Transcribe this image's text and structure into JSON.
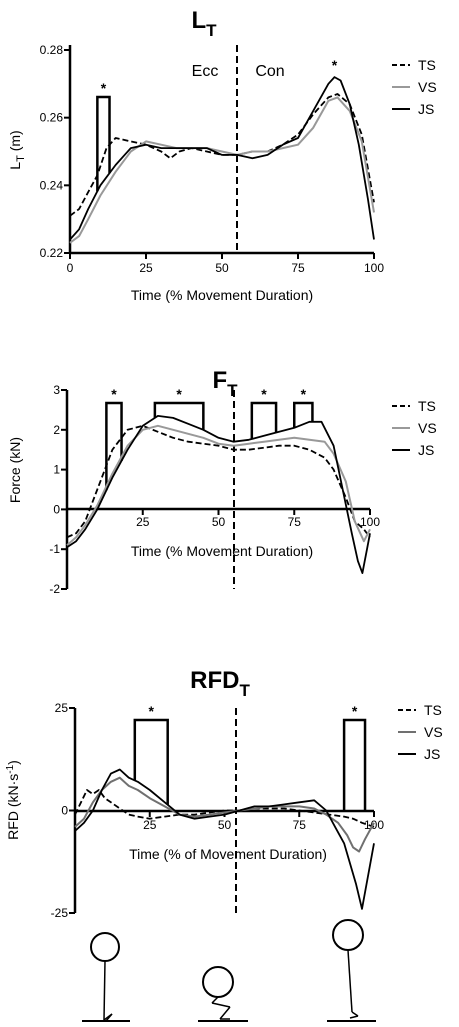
{
  "colors": {
    "TS": "#000000",
    "VS": "#999999",
    "VS_rfd": "#707070",
    "JS": "#000000"
  },
  "chart_data": [
    {
      "type": "line",
      "title": "L",
      "title_sub": "T",
      "xlabel": "Time (% Movement Duration)",
      "ylabel": "L",
      "ylabel_sub": "T",
      "ylabel_unit": " (m)",
      "xlim": [
        0,
        100
      ],
      "ylim": [
        0.22,
        0.28
      ],
      "xticks": [
        "0",
        "25",
        "50",
        "75",
        "100"
      ],
      "yticks": [
        "0.22",
        "0.24",
        "0.26",
        "0.28"
      ],
      "phase_line_x": 55,
      "phase_labels": {
        "left": "Ecc",
        "right": "Con"
      },
      "significance_bars": [
        {
          "x": [
            9,
            13
          ],
          "label": "*"
        }
      ],
      "top_stars": [
        {
          "x": 87,
          "label": "*"
        }
      ],
      "legend": [
        "TS",
        "VS",
        "JS"
      ],
      "series": [
        {
          "name": "TS",
          "style": "dashed",
          "x": [
            0,
            3,
            6,
            9,
            12,
            15,
            20,
            25,
            30,
            33,
            36,
            40,
            45,
            50,
            55,
            60,
            65,
            70,
            75,
            80,
            85,
            88,
            92,
            96,
            100
          ],
          "y": [
            0.231,
            0.233,
            0.238,
            0.243,
            0.251,
            0.254,
            0.253,
            0.252,
            0.25,
            0.248,
            0.25,
            0.251,
            0.25,
            0.249,
            0.249,
            0.25,
            0.25,
            0.252,
            0.255,
            0.261,
            0.266,
            0.267,
            0.264,
            0.255,
            0.235
          ]
        },
        {
          "name": "VS",
          "style": "solid",
          "x": [
            0,
            3,
            6,
            10,
            15,
            20,
            25,
            30,
            35,
            40,
            45,
            50,
            55,
            60,
            65,
            70,
            75,
            80,
            85,
            88,
            92,
            96,
            100
          ],
          "y": [
            0.223,
            0.225,
            0.23,
            0.237,
            0.244,
            0.25,
            0.253,
            0.252,
            0.251,
            0.251,
            0.251,
            0.25,
            0.249,
            0.25,
            0.25,
            0.251,
            0.252,
            0.257,
            0.265,
            0.266,
            0.262,
            0.253,
            0.232
          ]
        },
        {
          "name": "JS",
          "style": "solid",
          "x": [
            0,
            3,
            6,
            10,
            15,
            20,
            25,
            30,
            35,
            40,
            45,
            50,
            55,
            60,
            65,
            70,
            75,
            80,
            85,
            87,
            89,
            92,
            95,
            98,
            100
          ],
          "y": [
            0.224,
            0.227,
            0.233,
            0.24,
            0.246,
            0.251,
            0.252,
            0.251,
            0.251,
            0.251,
            0.251,
            0.249,
            0.249,
            0.248,
            0.249,
            0.252,
            0.254,
            0.262,
            0.27,
            0.272,
            0.271,
            0.264,
            0.252,
            0.236,
            0.224
          ]
        }
      ]
    },
    {
      "type": "line",
      "title": "F",
      "title_sub": "T",
      "xlabel": "Time (% Movement Duration)",
      "ylabel": "Force (kN)",
      "xlim": [
        0,
        100
      ],
      "ylim": [
        -2,
        3
      ],
      "xticks": [
        "25",
        "50",
        "75",
        "100"
      ],
      "yticks": [
        "-2",
        "-1",
        "0",
        "1",
        "2",
        "3"
      ],
      "phase_line_x": 55,
      "significance_bars": [
        {
          "x": [
            13,
            18
          ],
          "label": "*"
        },
        {
          "x": [
            29,
            45
          ],
          "label": "*"
        },
        {
          "x": [
            61,
            69
          ],
          "label": "*"
        },
        {
          "x": [
            75,
            81
          ],
          "label": "*"
        }
      ],
      "legend": [
        "TS",
        "VS",
        "JS"
      ],
      "series": [
        {
          "name": "TS",
          "style": "dashed",
          "x": [
            0,
            3,
            6,
            10,
            15,
            20,
            25,
            30,
            35,
            40,
            45,
            50,
            55,
            60,
            65,
            70,
            75,
            80,
            85,
            88,
            92,
            95,
            98,
            100
          ],
          "y": [
            -0.7,
            -0.6,
            -0.3,
            0.5,
            1.5,
            2.0,
            2.1,
            1.95,
            1.8,
            1.7,
            1.65,
            1.6,
            1.5,
            1.5,
            1.55,
            1.6,
            1.6,
            1.5,
            1.3,
            1.0,
            0.3,
            -0.3,
            -0.5,
            -0.7
          ]
        },
        {
          "name": "VS",
          "style": "solid",
          "x": [
            0,
            3,
            6,
            10,
            15,
            20,
            25,
            30,
            35,
            40,
            45,
            50,
            55,
            60,
            65,
            70,
            75,
            80,
            85,
            88,
            92,
            95,
            98,
            100
          ],
          "y": [
            -0.9,
            -0.7,
            -0.4,
            0.1,
            0.9,
            1.6,
            2.0,
            2.1,
            2.0,
            1.9,
            1.8,
            1.65,
            1.6,
            1.65,
            1.7,
            1.75,
            1.8,
            1.75,
            1.7,
            1.4,
            0.7,
            -0.3,
            -0.8,
            -0.5
          ]
        },
        {
          "name": "JS",
          "style": "solid",
          "x": [
            0,
            3,
            6,
            10,
            15,
            20,
            25,
            30,
            35,
            40,
            45,
            50,
            55,
            60,
            65,
            70,
            75,
            80,
            84,
            88,
            91,
            94,
            96,
            97.5,
            99,
            100
          ],
          "y": [
            -0.95,
            -0.8,
            -0.5,
            0.0,
            0.8,
            1.5,
            2.1,
            2.35,
            2.3,
            2.15,
            2.0,
            1.8,
            1.7,
            1.75,
            1.85,
            1.95,
            2.05,
            2.2,
            2.2,
            1.6,
            0.5,
            -0.6,
            -1.3,
            -1.6,
            -1.0,
            -0.6
          ]
        }
      ]
    },
    {
      "type": "line",
      "title": "RFD",
      "title_sub": "T",
      "xlabel": "Time (% of Movement Duration)",
      "ylabel": "RFD (kN·s",
      "ylabel_sup": "-1",
      "ylabel_end": ")",
      "xlim": [
        0,
        100
      ],
      "ylim": [
        -25,
        25
      ],
      "xticks": [
        "25",
        "50",
        "75",
        "100"
      ],
      "yticks": [
        "-25",
        "0",
        "25"
      ],
      "phase_line_x": 54,
      "significance_bars": [
        {
          "x": [
            20,
            31
          ],
          "label": "*"
        },
        {
          "x": [
            90,
            97
          ],
          "label": "*"
        }
      ],
      "legend": [
        "TS",
        "VS",
        "JS"
      ],
      "series": [
        {
          "name": "TS",
          "style": "dashed",
          "x": [
            0,
            2,
            4,
            6,
            8,
            10,
            12,
            15,
            18,
            21,
            25,
            30,
            35,
            40,
            45,
            50,
            55,
            60,
            65,
            70,
            75,
            80,
            85,
            90,
            93,
            96,
            100
          ],
          "y": [
            -1,
            2,
            5,
            4,
            5,
            3,
            2,
            0.5,
            -1,
            -1.5,
            -2,
            -1.5,
            -1,
            -1,
            -0.5,
            0,
            0,
            0.5,
            0.5,
            0.5,
            0,
            -0.5,
            -1,
            -1.5,
            -2,
            -3,
            -4
          ]
        },
        {
          "name": "VS",
          "style": "solid",
          "x": [
            0,
            3,
            6,
            9,
            12,
            15,
            18,
            21,
            25,
            30,
            35,
            40,
            45,
            50,
            55,
            60,
            65,
            70,
            75,
            80,
            84,
            88,
            91,
            93,
            95,
            97,
            100
          ],
          "y": [
            -4,
            -2,
            2,
            5,
            7,
            8,
            6,
            5,
            3,
            1,
            -1,
            -1.5,
            -1,
            -0.5,
            0,
            0.5,
            1,
            1,
            1,
            0.5,
            -1,
            -3,
            -6,
            -9,
            -10,
            -7,
            -3
          ]
        },
        {
          "name": "JS",
          "style": "solid",
          "x": [
            0,
            3,
            6,
            9,
            12,
            15,
            18,
            21,
            25,
            30,
            35,
            40,
            45,
            50,
            55,
            60,
            65,
            70,
            75,
            80,
            84,
            87,
            90,
            92,
            94,
            96,
            98,
            100
          ],
          "y": [
            -5,
            -3,
            0,
            5,
            9,
            10,
            8,
            7,
            5,
            2,
            -1,
            -2,
            -1.5,
            -1,
            0,
            1,
            1,
            1.5,
            2,
            2.5,
            0,
            -4,
            -8,
            -13,
            -18,
            -24,
            -16,
            -8
          ]
        }
      ]
    }
  ],
  "figures_label": "Squat phase stick figures"
}
